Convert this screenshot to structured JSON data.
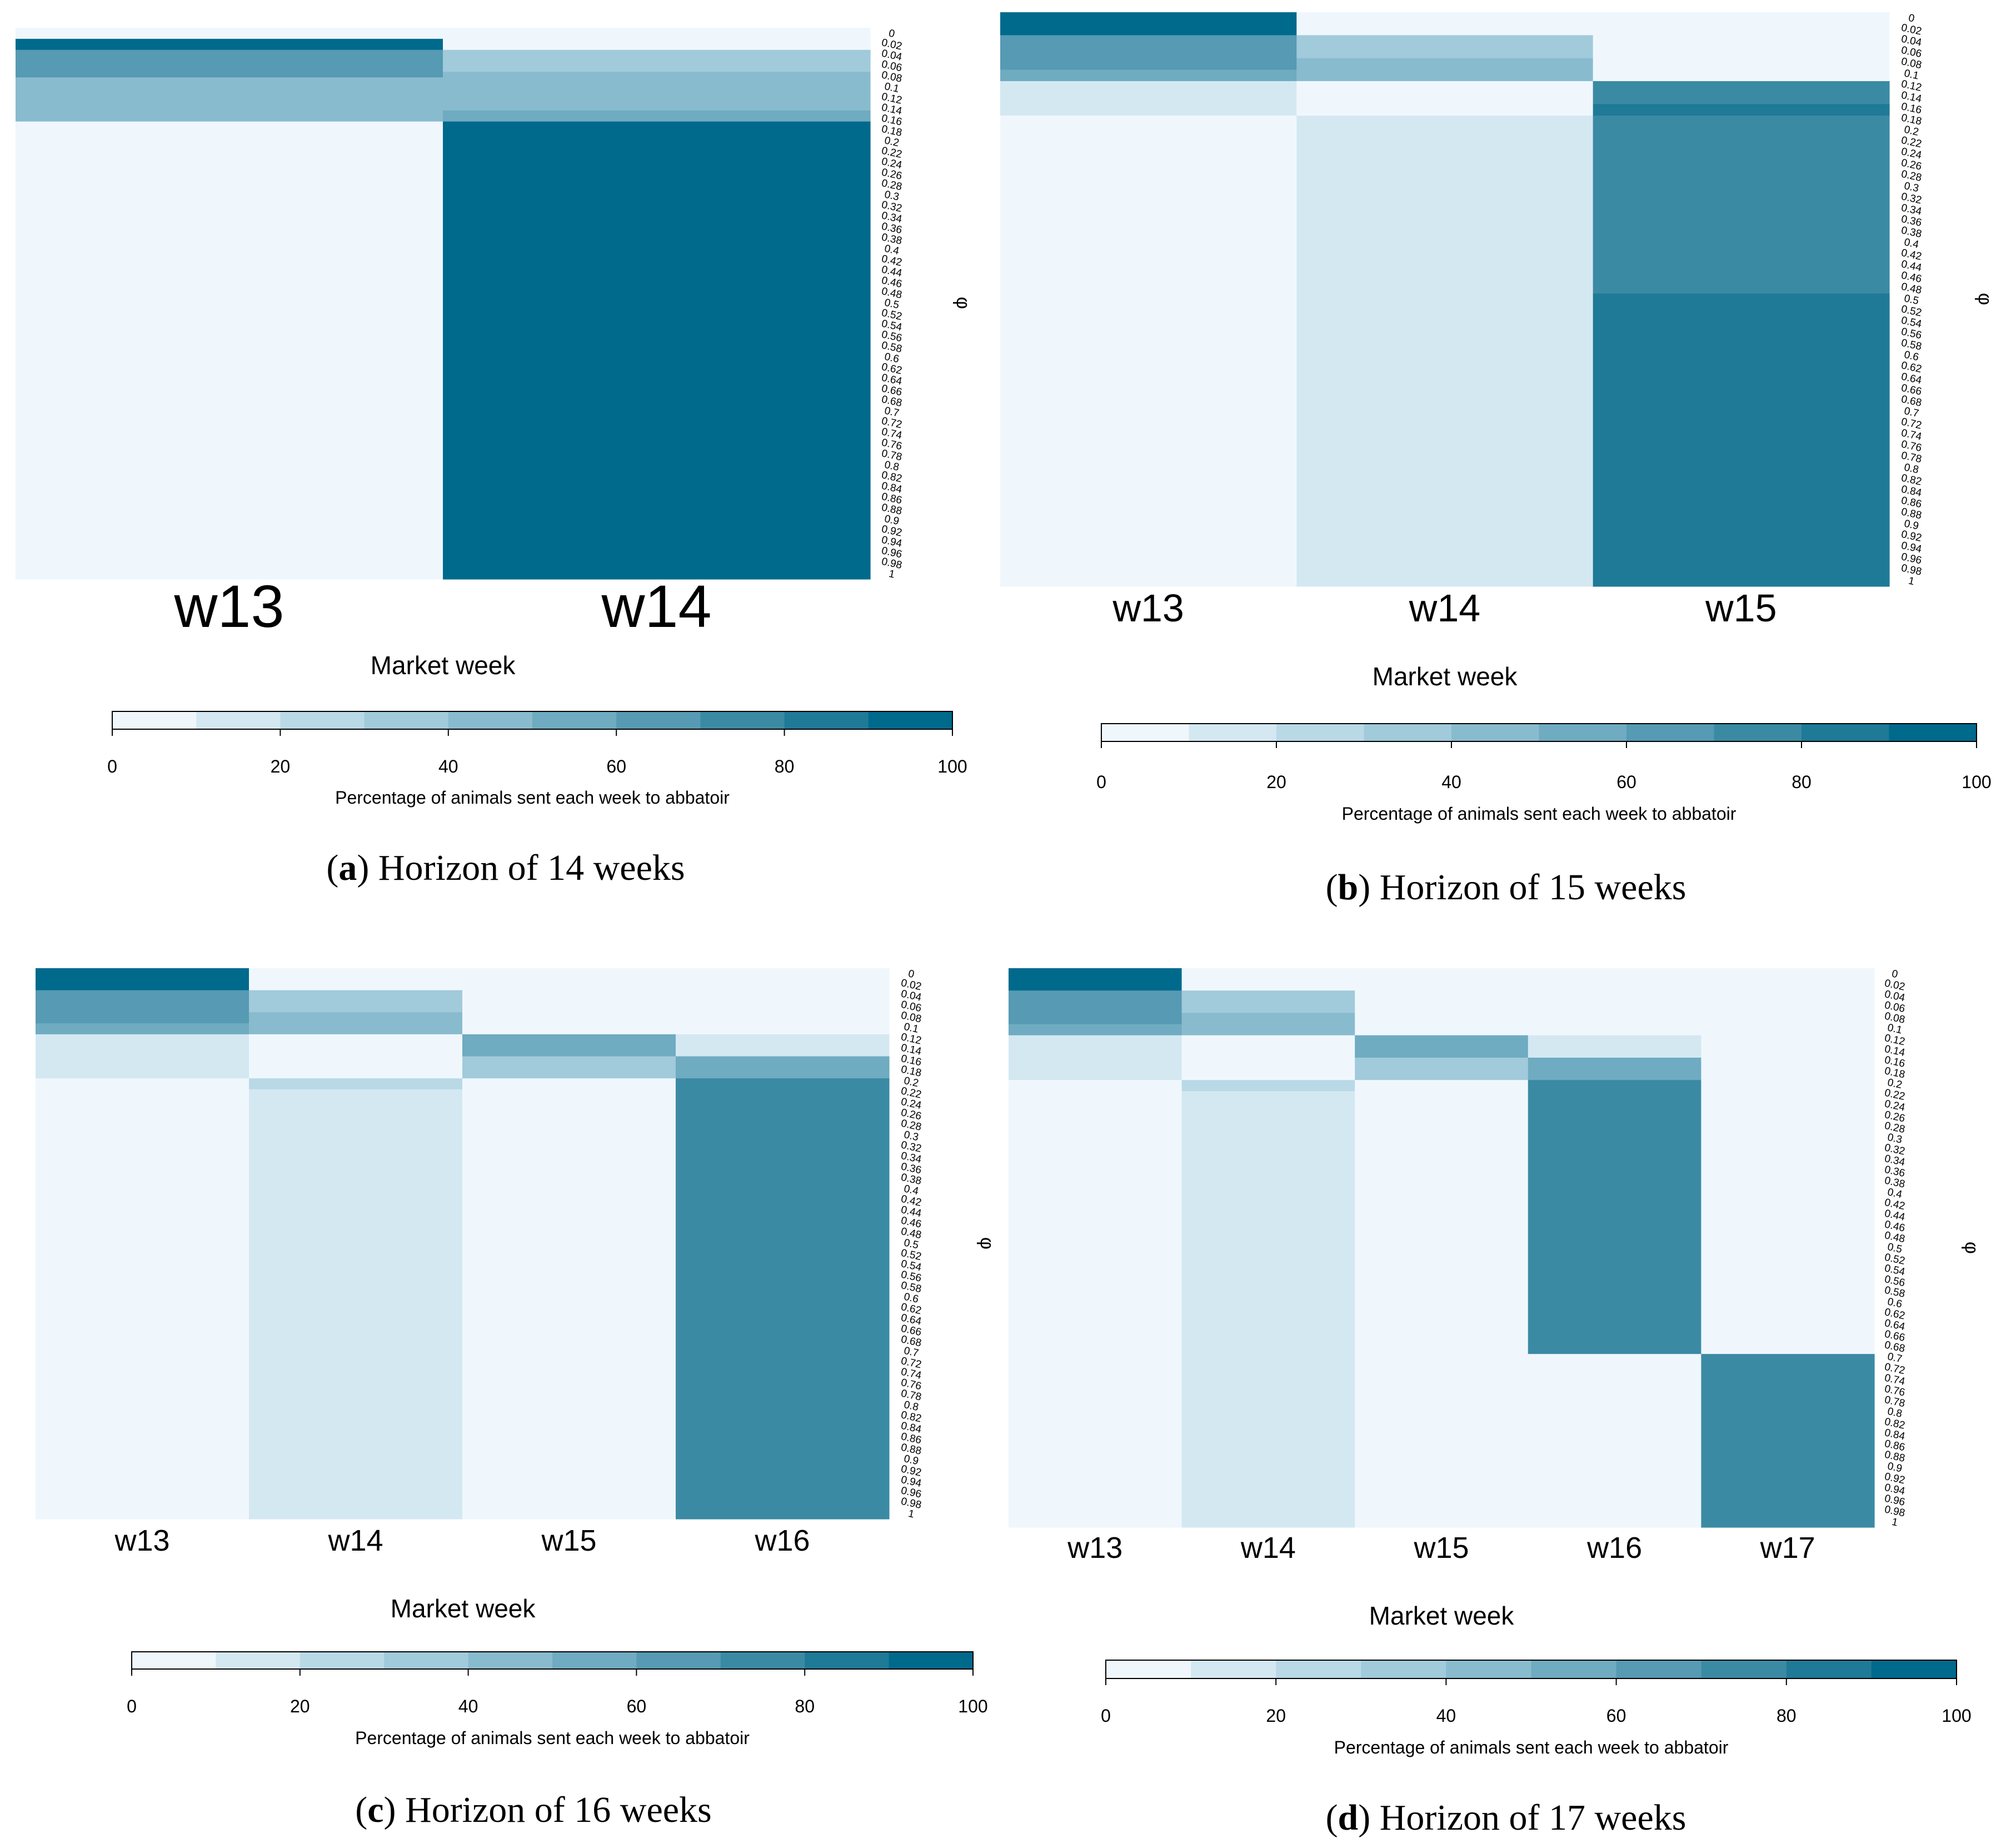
{
  "chart_data": [
    {
      "type": "heatmap",
      "panel_label": "a",
      "caption": "Horizon of 14 weeks",
      "xlabel": "Market week",
      "ylabel": "φ",
      "categories": [
        "w13",
        "w14"
      ],
      "y_ticks": [
        "0",
        "0.02",
        "0.04",
        "0.06",
        "0.08",
        "0.1",
        "0.12",
        "0.14",
        "0.16",
        "0.18",
        "0.2",
        "0.22",
        "0.24",
        "0.26",
        "0.28",
        "0.3",
        "0.32",
        "0.34",
        "0.36",
        "0.38",
        "0.4",
        "0.42",
        "0.44",
        "0.46",
        "0.48",
        "0.5",
        "0.52",
        "0.54",
        "0.56",
        "0.58",
        "0.6",
        "0.62",
        "0.64",
        "0.66",
        "0.68",
        "0.7",
        "0.72",
        "0.74",
        "0.76",
        "0.78",
        "0.8",
        "0.82",
        "0.84",
        "0.86",
        "0.88",
        "0.9",
        "0.92",
        "0.94",
        "0.96",
        "0.98",
        "1"
      ],
      "phi_range": [
        0,
        1
      ],
      "series": [
        {
          "name": "w13",
          "segments": [
            {
              "phi": [
                0,
                0.02
              ],
              "value": 0
            },
            {
              "phi": [
                0.02,
                0.04
              ],
              "value": 95
            },
            {
              "phi": [
                0.04,
                0.09
              ],
              "value": 60
            },
            {
              "phi": [
                0.09,
                0.17
              ],
              "value": 45
            },
            {
              "phi": [
                0.17,
                1
              ],
              "value": 5
            }
          ]
        },
        {
          "name": "w14",
          "segments": [
            {
              "phi": [
                0,
                0.04
              ],
              "value": 5
            },
            {
              "phi": [
                0.04,
                0.08
              ],
              "value": 35
            },
            {
              "phi": [
                0.08,
                0.15
              ],
              "value": 45
            },
            {
              "phi": [
                0.15,
                0.17
              ],
              "value": 55
            },
            {
              "phi": [
                0.17,
                1
              ],
              "value": 95
            }
          ]
        }
      ],
      "colorbar": {
        "ticks": [
          "0",
          "20",
          "40",
          "60",
          "80",
          "100"
        ],
        "label": "Percentage of animals sent each week to abbatoir",
        "range": [
          0,
          100
        ]
      }
    },
    {
      "type": "heatmap",
      "panel_label": "b",
      "caption": "Horizon of 15 weeks",
      "xlabel": "Market week",
      "ylabel": "φ",
      "categories": [
        "w13",
        "w14",
        "w15"
      ],
      "y_ticks": [
        "0",
        "0.02",
        "0.04",
        "0.06",
        "0.08",
        "0.1",
        "0.12",
        "0.14",
        "0.16",
        "0.18",
        "0.2",
        "0.22",
        "0.24",
        "0.26",
        "0.28",
        "0.3",
        "0.32",
        "0.34",
        "0.36",
        "0.38",
        "0.4",
        "0.42",
        "0.44",
        "0.46",
        "0.48",
        "0.5",
        "0.52",
        "0.54",
        "0.56",
        "0.58",
        "0.6",
        "0.62",
        "0.64",
        "0.66",
        "0.68",
        "0.7",
        "0.72",
        "0.74",
        "0.76",
        "0.78",
        "0.8",
        "0.82",
        "0.84",
        "0.86",
        "0.88",
        "0.9",
        "0.92",
        "0.94",
        "0.96",
        "0.98",
        "1"
      ],
      "phi_range": [
        0,
        1
      ],
      "series": [
        {
          "name": "w13",
          "segments": [
            {
              "phi": [
                0,
                0.04
              ],
              "value": 95
            },
            {
              "phi": [
                0.04,
                0.1
              ],
              "value": 60
            },
            {
              "phi": [
                0.1,
                0.12
              ],
              "value": 55
            },
            {
              "phi": [
                0.12,
                0.18
              ],
              "value": 15
            },
            {
              "phi": [
                0.18,
                1
              ],
              "value": 5
            }
          ]
        },
        {
          "name": "w14",
          "segments": [
            {
              "phi": [
                0,
                0.04
              ],
              "value": 5
            },
            {
              "phi": [
                0.04,
                0.08
              ],
              "value": 35
            },
            {
              "phi": [
                0.08,
                0.12
              ],
              "value": 45
            },
            {
              "phi": [
                0.12,
                0.18
              ],
              "value": 5
            },
            {
              "phi": [
                0.18,
                1
              ],
              "value": 15
            }
          ]
        },
        {
          "name": "w15",
          "segments": [
            {
              "phi": [
                0,
                0.12
              ],
              "value": 5
            },
            {
              "phi": [
                0.12,
                0.16
              ],
              "value": 75
            },
            {
              "phi": [
                0.16,
                0.18
              ],
              "value": 85
            },
            {
              "phi": [
                0.18,
                0.49
              ],
              "value": 75
            },
            {
              "phi": [
                0.49,
                1
              ],
              "value": 85
            }
          ]
        }
      ],
      "colorbar": {
        "ticks": [
          "0",
          "20",
          "40",
          "60",
          "80",
          "100"
        ],
        "label": "Percentage of animals sent each week to abbatoir",
        "range": [
          0,
          100
        ]
      }
    },
    {
      "type": "heatmap",
      "panel_label": "c",
      "caption": "Horizon of 16 weeks",
      "xlabel": "Market week",
      "ylabel": "φ",
      "categories": [
        "w13",
        "w14",
        "w15",
        "w16"
      ],
      "y_ticks": [
        "0",
        "0.02",
        "0.04",
        "0.06",
        "0.08",
        "0.1",
        "0.12",
        "0.14",
        "0.16",
        "0.18",
        "0.2",
        "0.22",
        "0.24",
        "0.26",
        "0.28",
        "0.3",
        "0.32",
        "0.34",
        "0.36",
        "0.38",
        "0.4",
        "0.42",
        "0.44",
        "0.46",
        "0.48",
        "0.5",
        "0.52",
        "0.54",
        "0.56",
        "0.58",
        "0.6",
        "0.62",
        "0.64",
        "0.66",
        "0.68",
        "0.7",
        "0.72",
        "0.74",
        "0.76",
        "0.78",
        "0.8",
        "0.82",
        "0.84",
        "0.86",
        "0.88",
        "0.9",
        "0.92",
        "0.94",
        "0.96",
        "0.98",
        "1"
      ],
      "phi_range": [
        0,
        1
      ],
      "series": [
        {
          "name": "w13",
          "segments": [
            {
              "phi": [
                0,
                0.04
              ],
              "value": 95
            },
            {
              "phi": [
                0.04,
                0.1
              ],
              "value": 60
            },
            {
              "phi": [
                0.1,
                0.12
              ],
              "value": 55
            },
            {
              "phi": [
                0.12,
                0.2
              ],
              "value": 15
            },
            {
              "phi": [
                0.2,
                1
              ],
              "value": 5
            }
          ]
        },
        {
          "name": "w14",
          "segments": [
            {
              "phi": [
                0,
                0.04
              ],
              "value": 5
            },
            {
              "phi": [
                0.04,
                0.08
              ],
              "value": 35
            },
            {
              "phi": [
                0.08,
                0.12
              ],
              "value": 45
            },
            {
              "phi": [
                0.12,
                0.2
              ],
              "value": 5
            },
            {
              "phi": [
                0.2,
                0.22
              ],
              "value": 25
            },
            {
              "phi": [
                0.22,
                1
              ],
              "value": 15
            }
          ]
        },
        {
          "name": "w15",
          "segments": [
            {
              "phi": [
                0,
                0.12
              ],
              "value": 5
            },
            {
              "phi": [
                0.12,
                0.16
              ],
              "value": 55
            },
            {
              "phi": [
                0.16,
                0.2
              ],
              "value": 35
            },
            {
              "phi": [
                0.2,
                1
              ],
              "value": 5
            }
          ]
        },
        {
          "name": "w16",
          "segments": [
            {
              "phi": [
                0,
                0.12
              ],
              "value": 5
            },
            {
              "phi": [
                0.12,
                0.16
              ],
              "value": 15
            },
            {
              "phi": [
                0.16,
                0.2
              ],
              "value": 55
            },
            {
              "phi": [
                0.2,
                1
              ],
              "value": 75
            }
          ]
        }
      ],
      "colorbar": {
        "ticks": [
          "0",
          "20",
          "40",
          "60",
          "80",
          "100"
        ],
        "label": "Percentage of animals sent each week to abbatoir",
        "range": [
          0,
          100
        ]
      }
    },
    {
      "type": "heatmap",
      "panel_label": "d",
      "caption": "Horizon of 17 weeks",
      "xlabel": "Market week",
      "ylabel": "φ",
      "categories": [
        "w13",
        "w14",
        "w15",
        "w16",
        "w17"
      ],
      "y_ticks": [
        "0",
        "0.02",
        "0.04",
        "0.06",
        "0.08",
        "0.1",
        "0.12",
        "0.14",
        "0.16",
        "0.18",
        "0.2",
        "0.22",
        "0.24",
        "0.26",
        "0.28",
        "0.3",
        "0.32",
        "0.34",
        "0.36",
        "0.38",
        "0.4",
        "0.42",
        "0.44",
        "0.46",
        "0.48",
        "0.5",
        "0.52",
        "0.54",
        "0.56",
        "0.58",
        "0.6",
        "0.62",
        "0.64",
        "0.66",
        "0.68",
        "0.7",
        "0.72",
        "0.74",
        "0.76",
        "0.78",
        "0.8",
        "0.82",
        "0.84",
        "0.86",
        "0.88",
        "0.9",
        "0.92",
        "0.94",
        "0.96",
        "0.98",
        "1"
      ],
      "phi_range": [
        0,
        1
      ],
      "series": [
        {
          "name": "w13",
          "segments": [
            {
              "phi": [
                0,
                0.04
              ],
              "value": 95
            },
            {
              "phi": [
                0.04,
                0.1
              ],
              "value": 60
            },
            {
              "phi": [
                0.1,
                0.12
              ],
              "value": 55
            },
            {
              "phi": [
                0.12,
                0.2
              ],
              "value": 15
            },
            {
              "phi": [
                0.2,
                1
              ],
              "value": 5
            }
          ]
        },
        {
          "name": "w14",
          "segments": [
            {
              "phi": [
                0,
                0.04
              ],
              "value": 5
            },
            {
              "phi": [
                0.04,
                0.08
              ],
              "value": 35
            },
            {
              "phi": [
                0.08,
                0.12
              ],
              "value": 45
            },
            {
              "phi": [
                0.12,
                0.2
              ],
              "value": 5
            },
            {
              "phi": [
                0.2,
                0.22
              ],
              "value": 25
            },
            {
              "phi": [
                0.22,
                1
              ],
              "value": 15
            }
          ]
        },
        {
          "name": "w15",
          "segments": [
            {
              "phi": [
                0,
                0.12
              ],
              "value": 5
            },
            {
              "phi": [
                0.12,
                0.16
              ],
              "value": 55
            },
            {
              "phi": [
                0.16,
                0.2
              ],
              "value": 35
            },
            {
              "phi": [
                0.2,
                1
              ],
              "value": 5
            }
          ]
        },
        {
          "name": "w16",
          "segments": [
            {
              "phi": [
                0,
                0.12
              ],
              "value": 5
            },
            {
              "phi": [
                0.12,
                0.16
              ],
              "value": 15
            },
            {
              "phi": [
                0.16,
                0.2
              ],
              "value": 55
            },
            {
              "phi": [
                0.2,
                0.69
              ],
              "value": 75
            },
            {
              "phi": [
                0.69,
                1
              ],
              "value": 5
            }
          ]
        },
        {
          "name": "w17",
          "segments": [
            {
              "phi": [
                0,
                0.69
              ],
              "value": 5
            },
            {
              "phi": [
                0.69,
                1
              ],
              "value": 75
            }
          ]
        }
      ],
      "colorbar": {
        "ticks": [
          "0",
          "20",
          "40",
          "60",
          "80",
          "100"
        ],
        "label": "Percentage of animals sent each week to abbatoir",
        "range": [
          0,
          100
        ]
      }
    }
  ],
  "palette": [
    "#eff7fd",
    "#d4e8f2",
    "#b9d9e7",
    "#a1cadb",
    "#89bbcf",
    "#6fabc1",
    "#569ab3",
    "#3b8aa4",
    "#1e7a97",
    "#006a8c"
  ]
}
